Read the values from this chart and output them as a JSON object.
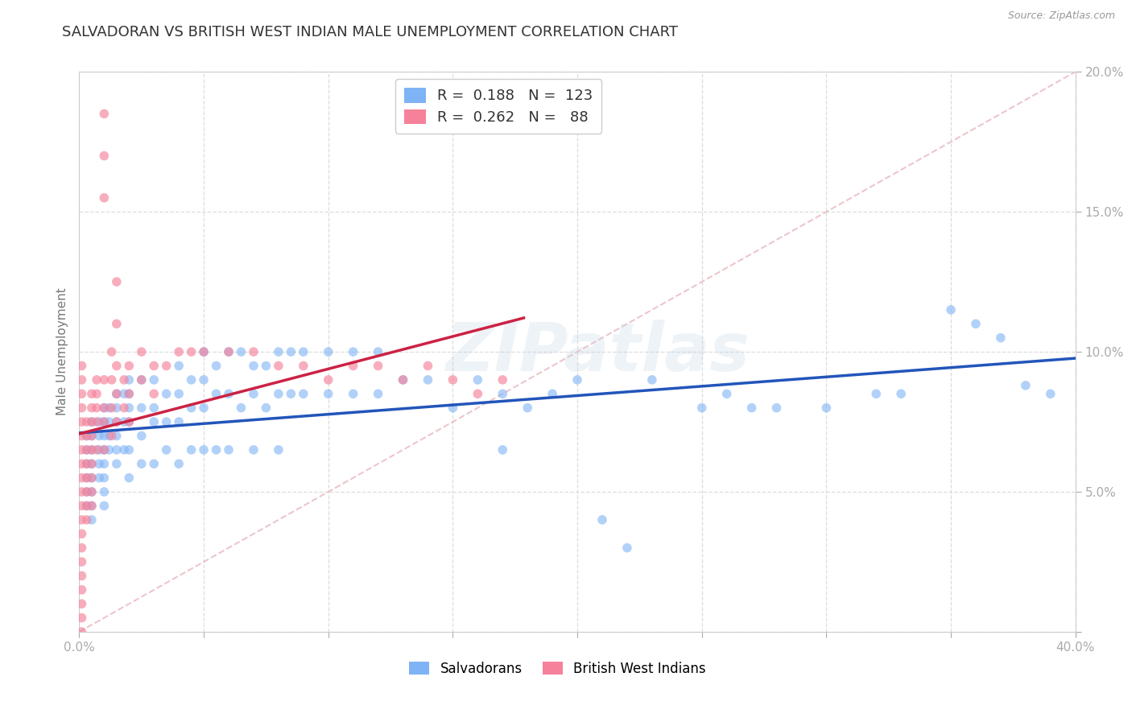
{
  "title": "SALVADORAN VS BRITISH WEST INDIAN MALE UNEMPLOYMENT CORRELATION CHART",
  "source": "Source: ZipAtlas.com",
  "ylabel": "Male Unemployment",
  "xlim": [
    0.0,
    0.4
  ],
  "ylim": [
    0.0,
    0.2
  ],
  "xtick_positions": [
    0.0,
    0.05,
    0.1,
    0.15,
    0.2,
    0.25,
    0.3,
    0.35,
    0.4
  ],
  "ytick_positions": [
    0.0,
    0.05,
    0.1,
    0.15,
    0.2
  ],
  "xtick_labels": [
    "0.0%",
    "",
    "",
    "",
    "",
    "",
    "",
    "",
    "40.0%"
  ],
  "ytick_labels": [
    "",
    "5.0%",
    "10.0%",
    "15.0%",
    "20.0%"
  ],
  "salvadoran_color": "#7EB3F5",
  "bwi_color": "#F5829A",
  "sal_line_color": "#2255BB",
  "bwi_line_color": "#CC2244",
  "diagonal_color": "#E8B8C0",
  "salvadoran_R": 0.188,
  "salvadoran_N": 123,
  "bwi_R": 0.262,
  "bwi_N": 88,
  "legend_labels": [
    "Salvadorans",
    "British West Indians"
  ],
  "watermark": "ZIPatlas",
  "background_color": "#FFFFFF",
  "grid_color": "#DDDDDD",
  "title_fontsize": 13,
  "axis_label_fontsize": 11,
  "tick_fontsize": 11,
  "tick_color": "#5599CC",
  "ylabel_color": "#777777",
  "sal_scatter_x": [
    0.003,
    0.003,
    0.003,
    0.003,
    0.003,
    0.003,
    0.005,
    0.005,
    0.005,
    0.005,
    0.005,
    0.005,
    0.005,
    0.005,
    0.008,
    0.008,
    0.008,
    0.008,
    0.008,
    0.01,
    0.01,
    0.01,
    0.01,
    0.01,
    0.01,
    0.01,
    0.01,
    0.012,
    0.012,
    0.012,
    0.012,
    0.015,
    0.015,
    0.015,
    0.015,
    0.015,
    0.015,
    0.018,
    0.018,
    0.018,
    0.02,
    0.02,
    0.02,
    0.02,
    0.02,
    0.02,
    0.025,
    0.025,
    0.025,
    0.025,
    0.03,
    0.03,
    0.03,
    0.03,
    0.035,
    0.035,
    0.035,
    0.04,
    0.04,
    0.04,
    0.04,
    0.045,
    0.045,
    0.045,
    0.05,
    0.05,
    0.05,
    0.05,
    0.055,
    0.055,
    0.055,
    0.06,
    0.06,
    0.06,
    0.065,
    0.065,
    0.07,
    0.07,
    0.07,
    0.075,
    0.075,
    0.08,
    0.08,
    0.08,
    0.085,
    0.085,
    0.09,
    0.09,
    0.1,
    0.1,
    0.11,
    0.11,
    0.12,
    0.12,
    0.13,
    0.14,
    0.15,
    0.16,
    0.17,
    0.17,
    0.18,
    0.19,
    0.2,
    0.21,
    0.22,
    0.23,
    0.25,
    0.26,
    0.27,
    0.28,
    0.3,
    0.32,
    0.33,
    0.35,
    0.36,
    0.37,
    0.38,
    0.39
  ],
  "sal_scatter_y": [
    0.07,
    0.065,
    0.06,
    0.055,
    0.05,
    0.045,
    0.075,
    0.07,
    0.065,
    0.06,
    0.055,
    0.05,
    0.045,
    0.04,
    0.075,
    0.07,
    0.065,
    0.06,
    0.055,
    0.08,
    0.075,
    0.07,
    0.065,
    0.06,
    0.055,
    0.05,
    0.045,
    0.08,
    0.075,
    0.07,
    0.065,
    0.085,
    0.08,
    0.075,
    0.07,
    0.065,
    0.06,
    0.085,
    0.075,
    0.065,
    0.09,
    0.085,
    0.08,
    0.075,
    0.065,
    0.055,
    0.09,
    0.08,
    0.07,
    0.06,
    0.09,
    0.08,
    0.075,
    0.06,
    0.085,
    0.075,
    0.065,
    0.095,
    0.085,
    0.075,
    0.06,
    0.09,
    0.08,
    0.065,
    0.1,
    0.09,
    0.08,
    0.065,
    0.095,
    0.085,
    0.065,
    0.1,
    0.085,
    0.065,
    0.1,
    0.08,
    0.095,
    0.085,
    0.065,
    0.095,
    0.08,
    0.1,
    0.085,
    0.065,
    0.1,
    0.085,
    0.1,
    0.085,
    0.1,
    0.085,
    0.1,
    0.085,
    0.1,
    0.085,
    0.09,
    0.09,
    0.08,
    0.09,
    0.085,
    0.065,
    0.08,
    0.085,
    0.09,
    0.04,
    0.03,
    0.09,
    0.08,
    0.085,
    0.08,
    0.08,
    0.08,
    0.085,
    0.085,
    0.115,
    0.11,
    0.105,
    0.088,
    0.085
  ],
  "bwi_scatter_x": [
    0.001,
    0.001,
    0.001,
    0.001,
    0.001,
    0.001,
    0.001,
    0.001,
    0.001,
    0.001,
    0.001,
    0.001,
    0.001,
    0.001,
    0.001,
    0.001,
    0.001,
    0.001,
    0.001,
    0.001,
    0.003,
    0.003,
    0.003,
    0.003,
    0.003,
    0.003,
    0.003,
    0.003,
    0.005,
    0.005,
    0.005,
    0.005,
    0.005,
    0.005,
    0.005,
    0.005,
    0.005,
    0.007,
    0.007,
    0.007,
    0.007,
    0.007,
    0.01,
    0.01,
    0.01,
    0.01,
    0.01,
    0.01,
    0.01,
    0.013,
    0.013,
    0.013,
    0.013,
    0.015,
    0.015,
    0.015,
    0.015,
    0.015,
    0.018,
    0.018,
    0.02,
    0.02,
    0.02,
    0.025,
    0.025,
    0.03,
    0.03,
    0.035,
    0.04,
    0.045,
    0.05,
    0.06,
    0.07,
    0.08,
    0.09,
    0.1,
    0.11,
    0.12,
    0.13,
    0.14,
    0.15,
    0.16,
    0.17
  ],
  "bwi_scatter_y": [
    0.07,
    0.065,
    0.06,
    0.055,
    0.05,
    0.045,
    0.04,
    0.035,
    0.03,
    0.025,
    0.08,
    0.075,
    0.085,
    0.09,
    0.095,
    0.01,
    0.005,
    0.0,
    0.015,
    0.02,
    0.075,
    0.07,
    0.065,
    0.06,
    0.055,
    0.05,
    0.045,
    0.04,
    0.085,
    0.08,
    0.075,
    0.07,
    0.065,
    0.06,
    0.055,
    0.05,
    0.045,
    0.09,
    0.085,
    0.08,
    0.075,
    0.065,
    0.185,
    0.17,
    0.155,
    0.09,
    0.08,
    0.075,
    0.065,
    0.1,
    0.09,
    0.08,
    0.07,
    0.125,
    0.11,
    0.095,
    0.085,
    0.075,
    0.09,
    0.08,
    0.095,
    0.085,
    0.075,
    0.1,
    0.09,
    0.095,
    0.085,
    0.095,
    0.1,
    0.1,
    0.1,
    0.1,
    0.1,
    0.095,
    0.095,
    0.09,
    0.095,
    0.095,
    0.09,
    0.095,
    0.09,
    0.085,
    0.09
  ]
}
